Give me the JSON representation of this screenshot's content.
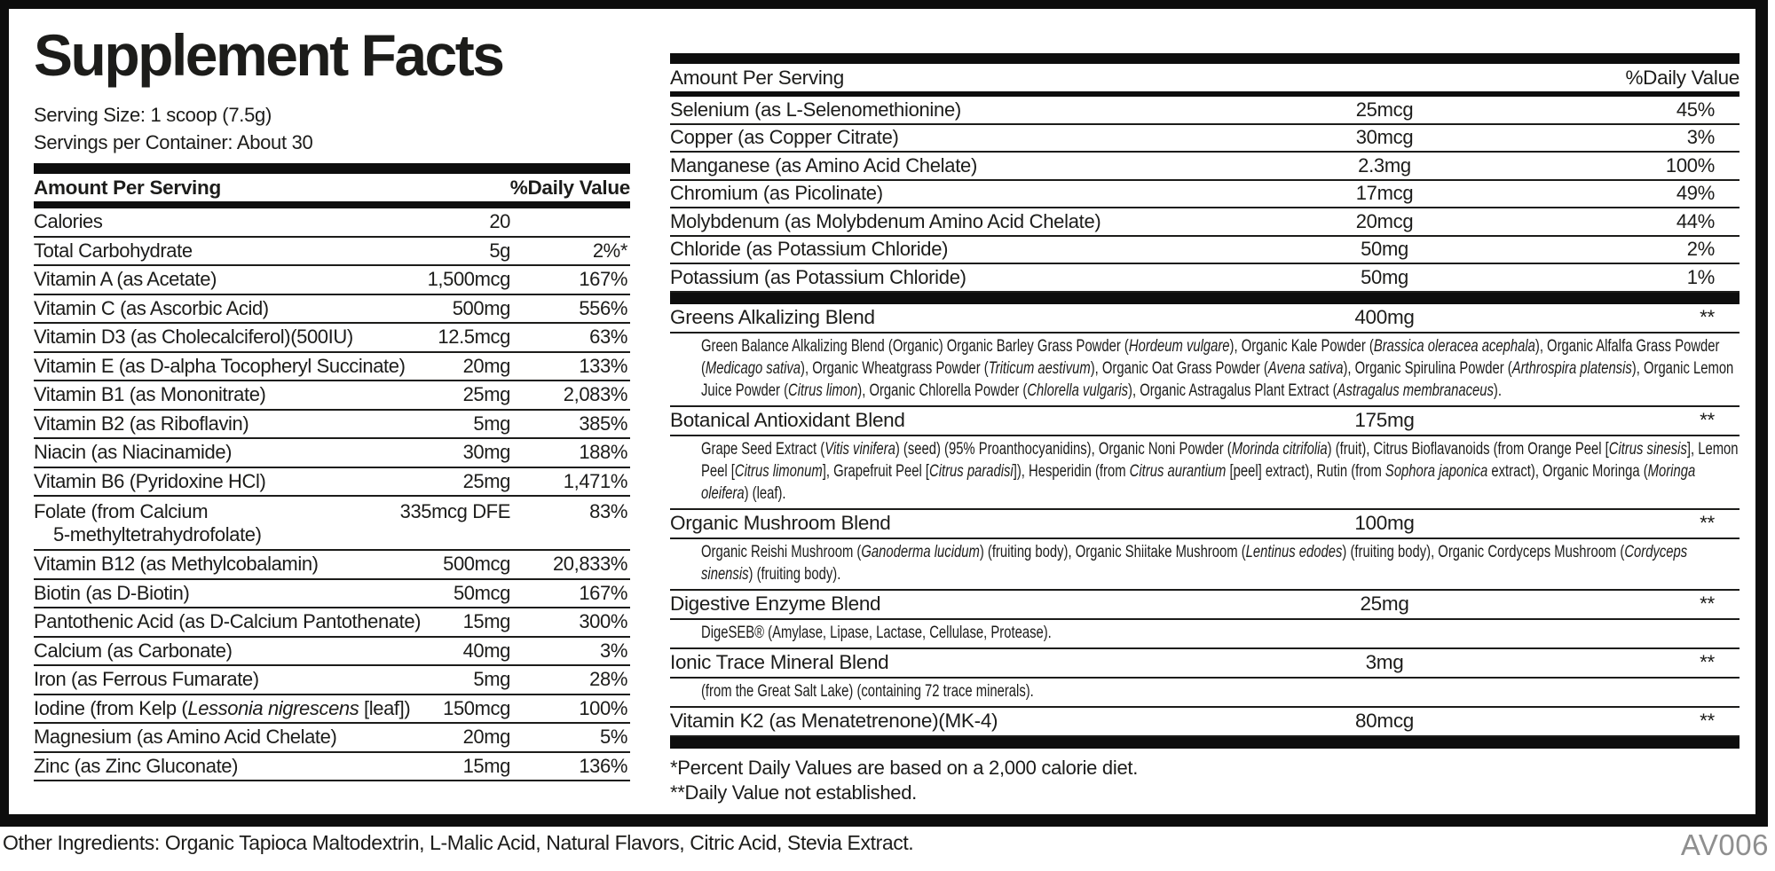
{
  "title": "Supplement Facts",
  "serving": {
    "size": "Serving Size: 1 scoop (7.5g)",
    "per_container": "Servings per Container: About 30"
  },
  "table_header": {
    "amount": "Amount Per Serving",
    "daily_value": "%Daily Value"
  },
  "left_rows": [
    {
      "name": "Calories",
      "amount": "20",
      "dv": ""
    },
    {
      "name": "Total Carbohydrate",
      "amount": "5g",
      "dv": "2%*"
    },
    {
      "name": "Vitamin A (as Acetate)",
      "amount": "1,500mcg",
      "dv": "167%"
    },
    {
      "name": "Vitamin C (as Ascorbic Acid)",
      "amount": "500mg",
      "dv": "556%"
    },
    {
      "name": "Vitamin D3 (as Cholecalciferol)(500IU)",
      "amount": "12.5mcg",
      "dv": "63%"
    },
    {
      "name": "Vitamin E (as D-alpha Tocopheryl Succinate)",
      "amount": "20mg",
      "dv": "133%"
    },
    {
      "name": "Vitamin B1 (as Mononitrate)",
      "amount": "25mg",
      "dv": "2,083%"
    },
    {
      "name": "Vitamin B2 (as Riboflavin)",
      "amount": "5mg",
      "dv": "385%"
    },
    {
      "name": "Niacin (as Niacinamide)",
      "amount": "30mg",
      "dv": "188%"
    },
    {
      "name": "Vitamin B6 (Pyridoxine HCl)",
      "amount": "25mg",
      "dv": "1,471%"
    },
    {
      "name": [
        {
          "t": "Folate (from Calcium"
        },
        {
          "t": "5-methyltetrahydrofolate)",
          "nl": true
        }
      ],
      "amount": "335mcg DFE",
      "dv": "83%",
      "two_line": true
    },
    {
      "name": "Vitamin B12 (as Methylcobalamin)",
      "amount": "500mcg",
      "dv": "20,833%"
    },
    {
      "name": "Biotin (as D-Biotin)",
      "amount": "50mcg",
      "dv": "167%"
    },
    {
      "name": "Pantothenic Acid (as D-Calcium Pantothenate)",
      "amount": "15mg",
      "dv": "300%"
    },
    {
      "name": "Calcium (as Carbonate)",
      "amount": "40mg",
      "dv": "3%"
    },
    {
      "name": "Iron (as Ferrous Fumarate)",
      "amount": "5mg",
      "dv": "28%"
    },
    {
      "name": [
        {
          "t": "Iodine (from Kelp ("
        },
        {
          "t": "Lessonia nigrescens",
          "i": true
        },
        {
          "t": " [leaf])"
        }
      ],
      "amount": "150mcg",
      "dv": "100%"
    },
    {
      "name": "Magnesium (as Amino Acid Chelate)",
      "amount": "20mg",
      "dv": "5%"
    },
    {
      "name": "Zinc (as Zinc Gluconate)",
      "amount": "15mg",
      "dv": "136%"
    }
  ],
  "right_rows": [
    {
      "name": "Selenium (as L-Selenomethionine)",
      "amount": "25mcg",
      "dv": "45%"
    },
    {
      "name": "Copper (as Copper Citrate)",
      "amount": "30mcg",
      "dv": "3%"
    },
    {
      "name": "Manganese (as Amino Acid Chelate)",
      "amount": "2.3mg",
      "dv": "100%"
    },
    {
      "name": "Chromium (as Picolinate)",
      "amount": "17mcg",
      "dv": "49%"
    },
    {
      "name": "Molybdenum (as Molybdenum Amino Acid Chelate)",
      "amount": "20mcg",
      "dv": "44%"
    },
    {
      "name": "Chloride (as Potassium Chloride)",
      "amount": "50mg",
      "dv": "2%"
    },
    {
      "name": "Potassium (as Potassium Chloride)",
      "amount": "50mg",
      "dv": "1%"
    }
  ],
  "blends": [
    {
      "name": "Greens Alkalizing Blend",
      "amount": "400mg",
      "dv": "**",
      "desc": [
        {
          "t": "Green Balance Alkalizing Blend (Organic) Organic Barley Grass Powder ("
        },
        {
          "t": "Hordeum vulgare",
          "i": true
        },
        {
          "t": "), Organic Kale Powder ("
        },
        {
          "t": "Brassica oleracea acephala",
          "i": true
        },
        {
          "t": "), Organic Alfalfa Grass Powder ("
        },
        {
          "t": "Medicago sativa",
          "i": true
        },
        {
          "t": "), Organic Wheatgrass Powder ("
        },
        {
          "t": "Triticum aestivum",
          "i": true
        },
        {
          "t": "), Organic Oat Grass Powder ("
        },
        {
          "t": "Avena sativa",
          "i": true
        },
        {
          "t": "), Organic Spirulina Powder ("
        },
        {
          "t": "Arthrospira platensis",
          "i": true
        },
        {
          "t": "), Organic Lemon Juice Powder ("
        },
        {
          "t": "Citrus limon",
          "i": true
        },
        {
          "t": "), Organic Chlorella Powder ("
        },
        {
          "t": "Chlorella vulgaris",
          "i": true
        },
        {
          "t": "), Organic Astragalus Plant Extract ("
        },
        {
          "t": "Astragalus membranaceus",
          "i": true
        },
        {
          "t": ")."
        }
      ]
    },
    {
      "name": "Botanical Antioxidant Blend",
      "amount": "175mg",
      "dv": "**",
      "desc": [
        {
          "t": "Grape Seed Extract ("
        },
        {
          "t": "Vitis vinifera",
          "i": true
        },
        {
          "t": ") (seed) (95% Proanthocyanidins), Organic Noni Powder ("
        },
        {
          "t": "Morinda citrifolia",
          "i": true
        },
        {
          "t": ") (fruit), Citrus Bioflavanoids (from Orange Peel ["
        },
        {
          "t": "Citrus sinesis",
          "i": true
        },
        {
          "t": "], Lemon Peel ["
        },
        {
          "t": "Citrus limonum",
          "i": true
        },
        {
          "t": "], Grapefruit Peel ["
        },
        {
          "t": "Citrus paradisi",
          "i": true
        },
        {
          "t": "]), Hesperidin (from "
        },
        {
          "t": "Citrus aurantium",
          "i": true
        },
        {
          "t": " [peel] extract), Rutin (from "
        },
        {
          "t": "Sophora japonica",
          "i": true
        },
        {
          "t": " extract), Organic Moringa ("
        },
        {
          "t": "Moringa oleifera",
          "i": true
        },
        {
          "t": ") (leaf)."
        }
      ]
    },
    {
      "name": "Organic Mushroom Blend",
      "amount": "100mg",
      "dv": "**",
      "desc": [
        {
          "t": "Organic Reishi Mushroom ("
        },
        {
          "t": "Ganoderma lucidum",
          "i": true
        },
        {
          "t": ") (fruiting body), Organic Shiitake Mushroom ("
        },
        {
          "t": "Lentinus edodes",
          "i": true
        },
        {
          "t": ") (fruiting body), Organic Cordyceps Mushroom ("
        },
        {
          "t": "Cordyceps sinensis",
          "i": true
        },
        {
          "t": ") (fruiting body)."
        }
      ]
    },
    {
      "name": "Digestive Enzyme Blend",
      "amount": "25mg",
      "dv": "**",
      "desc": [
        {
          "t": "DigeSEB® (Amylase, Lipase, Lactase, Cellulase, Protease)."
        }
      ]
    },
    {
      "name": "Ionic Trace Mineral Blend",
      "amount": "3mg",
      "dv": "**",
      "desc": [
        {
          "t": "(from the Great Salt Lake) (containing 72 trace minerals)."
        }
      ]
    },
    {
      "name": "Vitamin K2 (as Menatetrenone)(MK-4)",
      "amount": "80mcg",
      "dv": "**"
    }
  ],
  "footnotes": [
    "*Percent Daily Values are based on a 2,000 calorie diet.",
    "**Daily Value not established."
  ],
  "other_ingredients": "Other Ingredients: Organic Tapioca Maltodextrin, L-Malic Acid, Natural Flavors, Citric Acid, Stevia Extract.",
  "code": "AV006",
  "colors": {
    "ink": "#1c1c1a",
    "bar": "#0d0d0d",
    "muted": "#8f8f8f"
  }
}
